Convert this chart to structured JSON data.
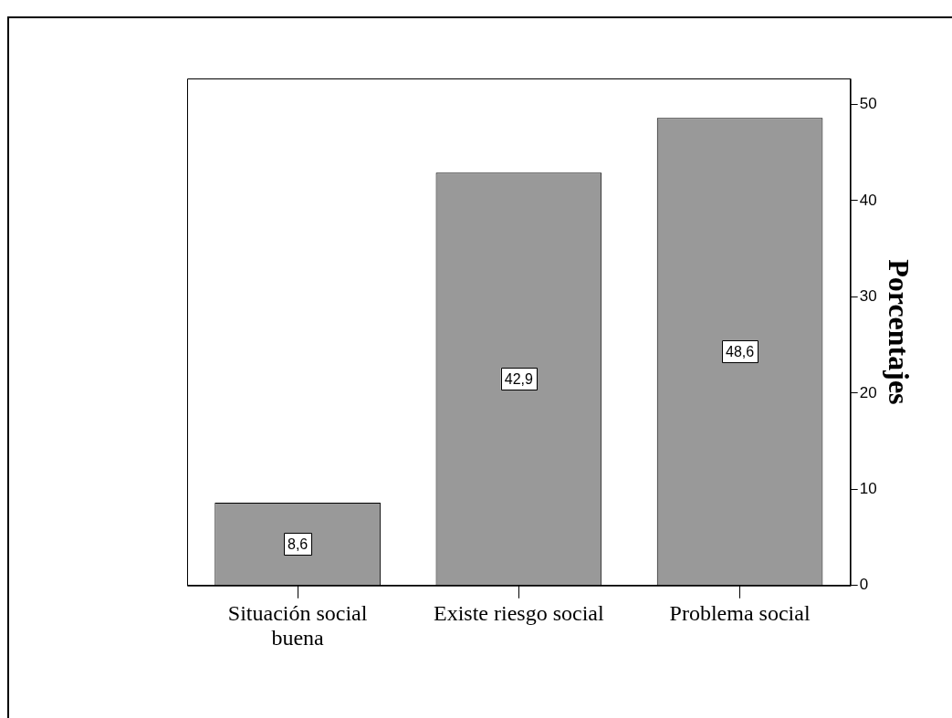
{
  "chart_data": {
    "type": "bar",
    "categories": [
      "Situación social buena",
      "Existe riesgo social",
      "Problema social"
    ],
    "values": [
      8.6,
      42.9,
      48.6
    ],
    "value_labels": [
      "8,6",
      "42,9",
      "48,6"
    ],
    "color": "#999999",
    "ylabel": "Porcentajes",
    "ylim": [
      0,
      52.7
    ],
    "yticks": [
      0,
      10,
      20,
      30,
      40,
      50
    ],
    "grid": false,
    "legend": false
  }
}
